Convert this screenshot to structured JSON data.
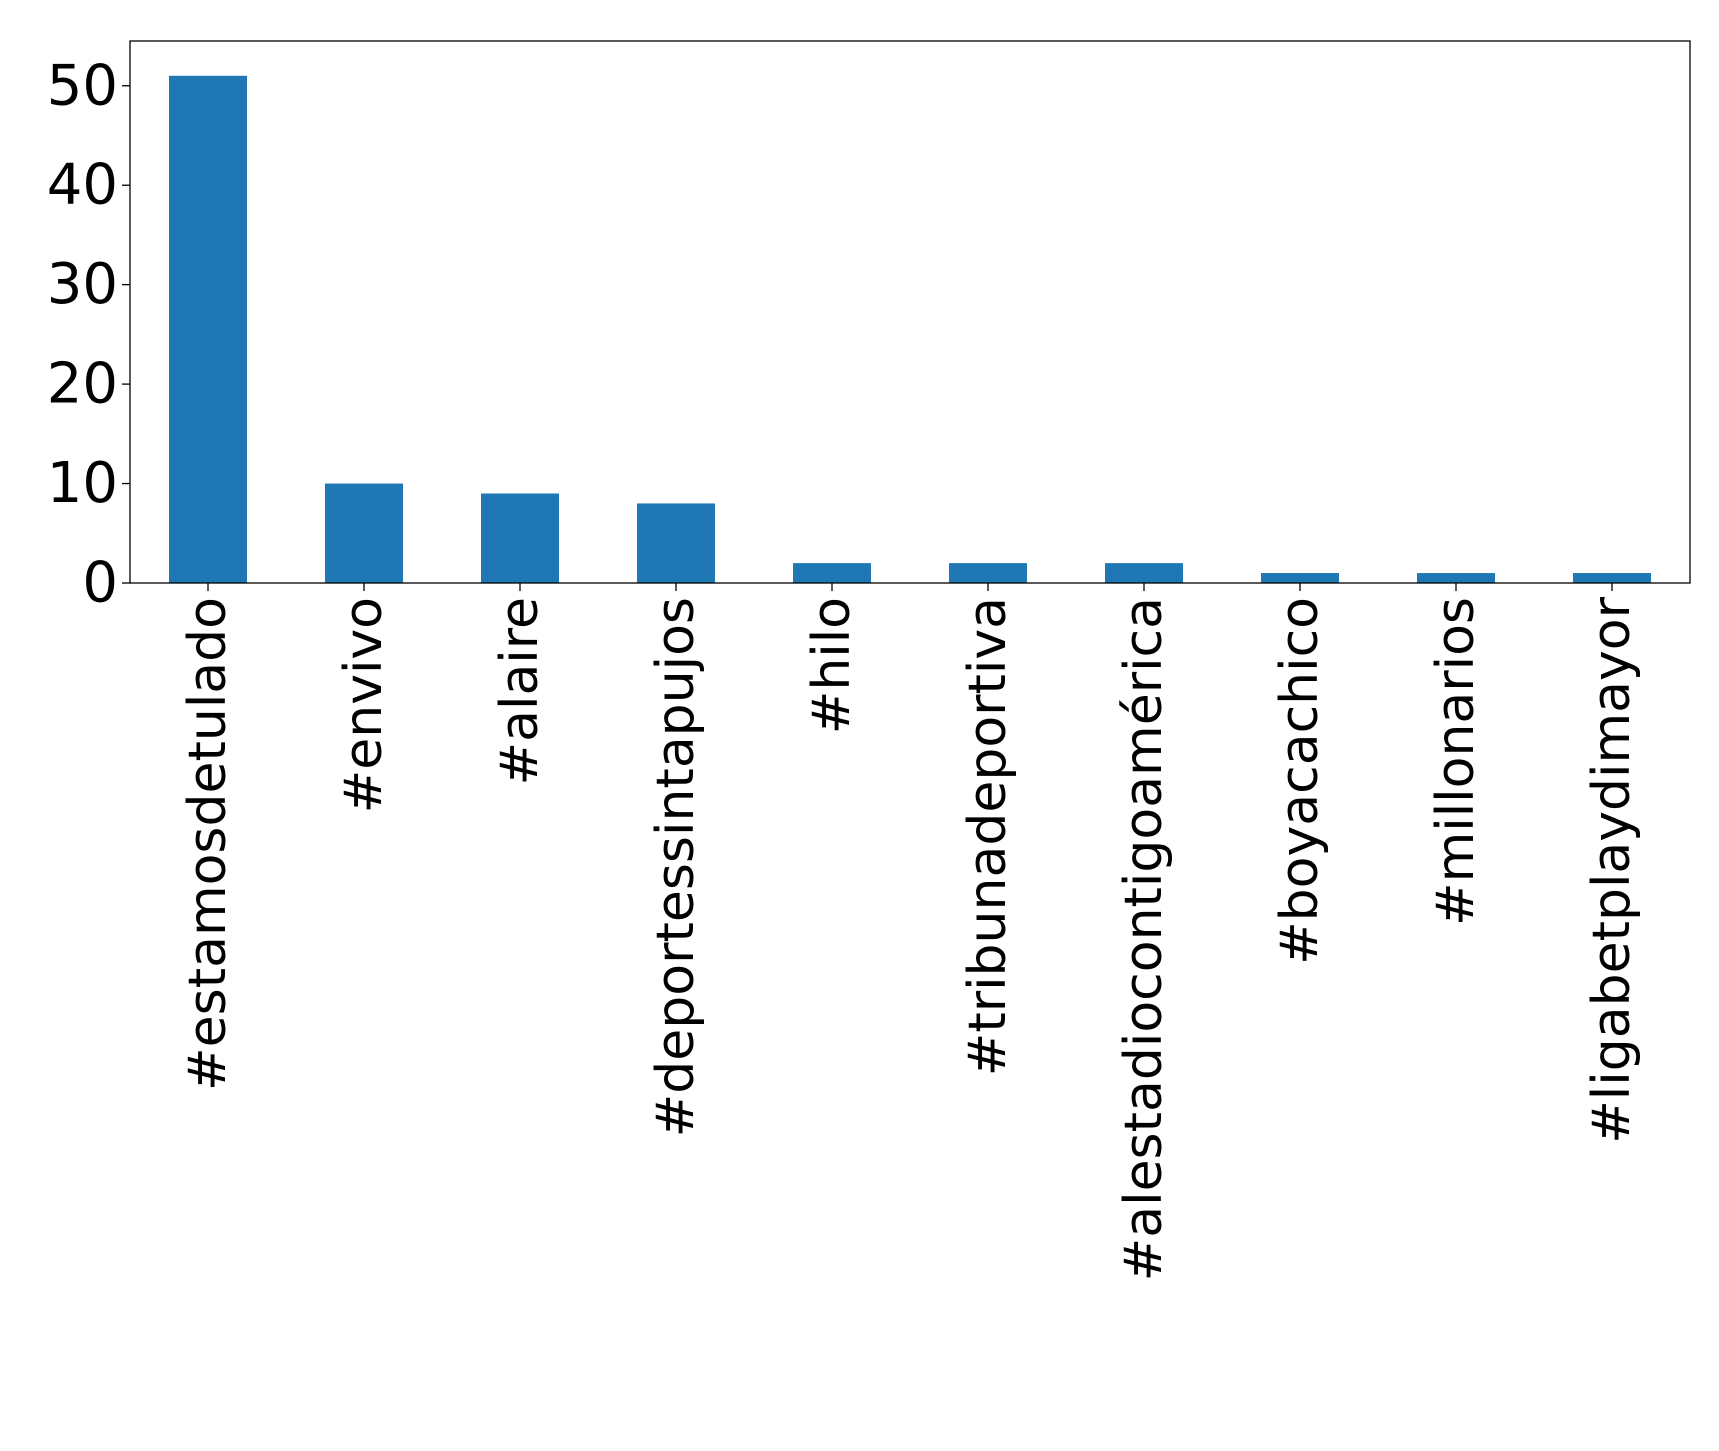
{
  "chart_data": {
    "type": "bar",
    "categories": [
      "#estamosdetulado",
      "#envivo",
      "#alaire",
      "#deportessintapujos",
      "#hilo",
      "#tribunadeportiva",
      "#alestadiocontigoamérica",
      "#boyacachico",
      "#millonarios",
      "#ligabetplaydimayor"
    ],
    "values": [
      51,
      10,
      9,
      8,
      2,
      2,
      2,
      1,
      1,
      1
    ],
    "ylim": [
      0,
      54.5
    ],
    "yticks": [
      0,
      10,
      20,
      30,
      40,
      50
    ],
    "title": "",
    "xlabel": "",
    "ylabel": "",
    "bar_color": "#1f77b4",
    "grid": false,
    "legend": "none"
  }
}
